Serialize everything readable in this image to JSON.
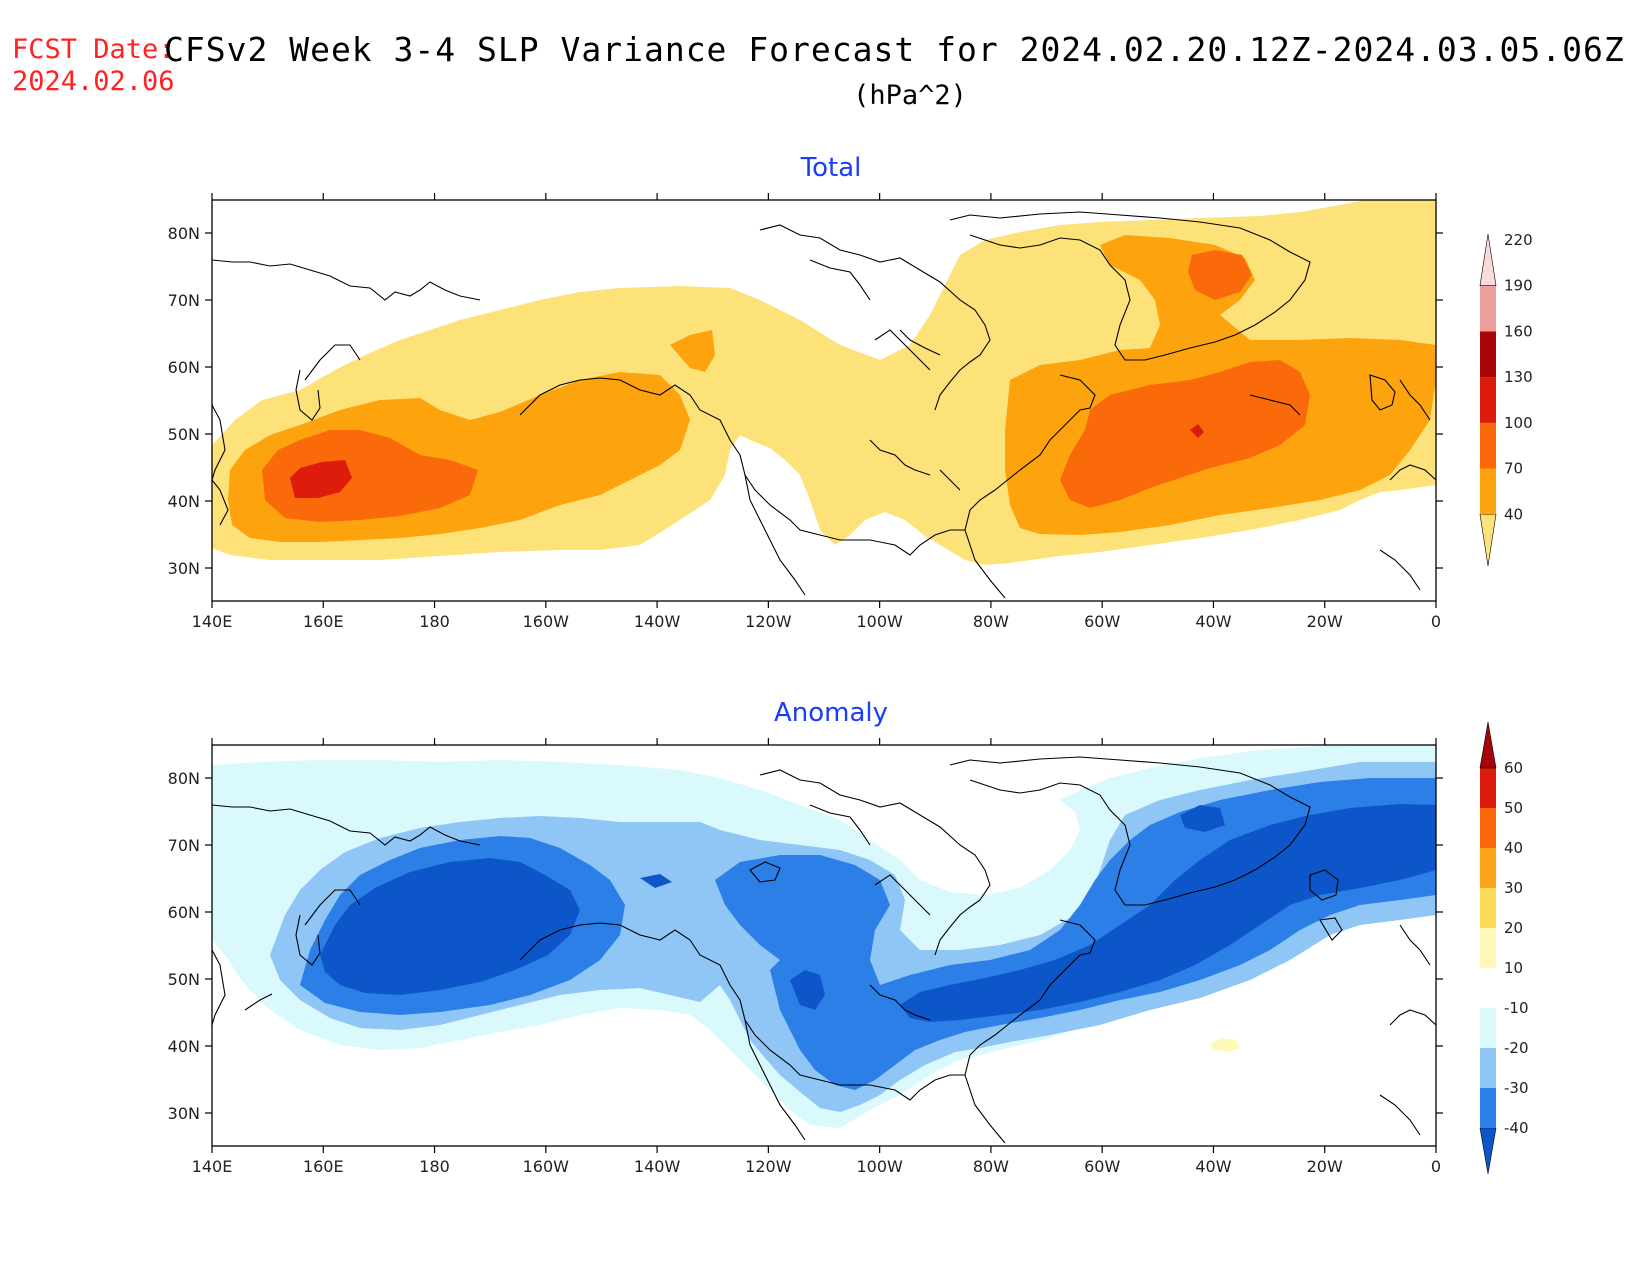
{
  "header": {
    "fcst_label": "FCST Date:",
    "fcst_date": "2024.02.06",
    "title": "CFSv2 Week 3-4 SLP Variance Forecast for 2024.02.20.12Z-2024.03.05.06Z",
    "units": "(hPa^2)"
  },
  "axes": {
    "lon_labels": [
      "140E",
      "160E",
      "180",
      "160W",
      "140W",
      "120W",
      "100W",
      "80W",
      "60W",
      "40W",
      "20W",
      "0"
    ],
    "lat_labels": [
      "80N",
      "70N",
      "60N",
      "50N",
      "40N",
      "30N"
    ]
  },
  "panels": [
    {
      "title": "Total",
      "colorbar": {
        "levels": [
          "40",
          "70",
          "100",
          "130",
          "160",
          "190",
          "220"
        ],
        "colors": [
          "#fde27a",
          "#fca30d",
          "#fb6a0a",
          "#dd1c0c",
          "#a8050a",
          "#ef9e9e",
          "#fbdada"
        ]
      }
    },
    {
      "title": "Anomaly",
      "colorbar": {
        "levels": [
          "-40",
          "-30",
          "-20",
          "-10",
          "10",
          "20",
          "30",
          "40",
          "50",
          "60"
        ],
        "colors": [
          "#0d56c9",
          "#2b7fe6",
          "#8fc6f5",
          "#d9f9fc",
          "#ffffff",
          "#fff9b8",
          "#fbd95a",
          "#fca51a",
          "#fb6a0a",
          "#dc1d0c",
          "#a30508"
        ]
      }
    }
  ]
}
